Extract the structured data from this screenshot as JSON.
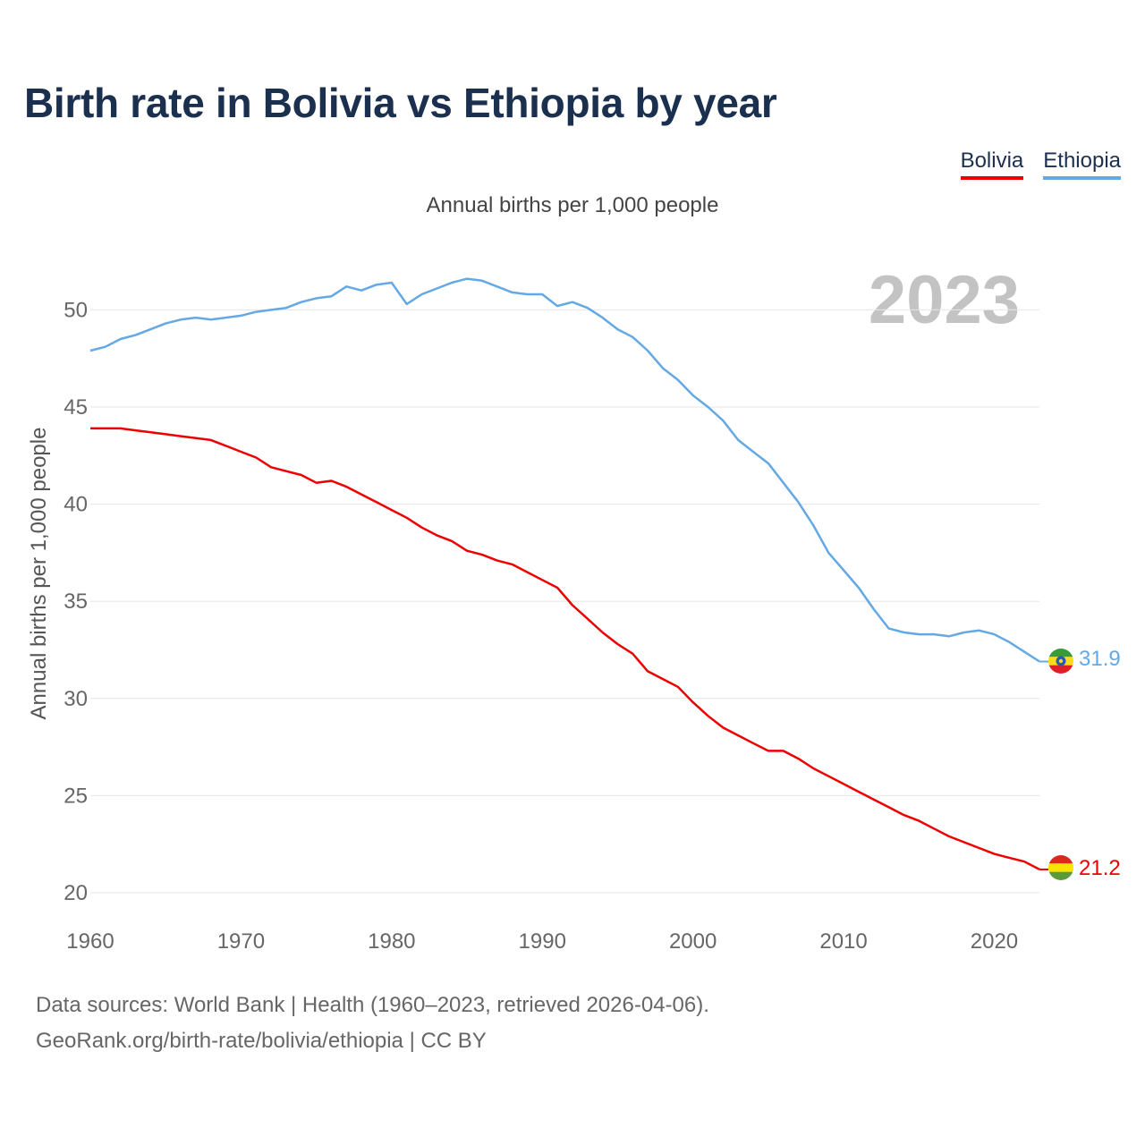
{
  "title": "Birth rate in Bolivia vs Ethiopia by year",
  "subtitle": "Annual births per 1,000 people",
  "year_label": "2023",
  "legend": [
    {
      "name": "Bolivia",
      "color": "#ee0000"
    },
    {
      "name": "Ethiopia",
      "color": "#64a8e4"
    }
  ],
  "footer": {
    "line1": "Data sources: World Bank | Health (1960–2023, retrieved 2026-04-06).",
    "line2": "GeoRank.org/birth-rate/bolivia/ethiopia | CC BY"
  },
  "chart_data": {
    "type": "line",
    "title": "Birth rate in Bolivia vs Ethiopia by year",
    "ylabel": "Annual births per 1,000 people",
    "xlabel": "",
    "xlim": [
      1960,
      2023
    ],
    "ylim": [
      20,
      53
    ],
    "x_ticks": [
      1960,
      1970,
      1980,
      1990,
      2000,
      2010,
      2020
    ],
    "y_ticks": [
      20,
      25,
      30,
      35,
      40,
      45,
      50
    ],
    "grid": true,
    "x": [
      1960,
      1961,
      1962,
      1963,
      1964,
      1965,
      1966,
      1967,
      1968,
      1969,
      1970,
      1971,
      1972,
      1973,
      1974,
      1975,
      1976,
      1977,
      1978,
      1979,
      1980,
      1981,
      1982,
      1983,
      1984,
      1985,
      1986,
      1987,
      1988,
      1989,
      1990,
      1991,
      1992,
      1993,
      1994,
      1995,
      1996,
      1997,
      1998,
      1999,
      2000,
      2001,
      2002,
      2003,
      2004,
      2005,
      2006,
      2007,
      2008,
      2009,
      2010,
      2011,
      2012,
      2013,
      2014,
      2015,
      2016,
      2017,
      2018,
      2019,
      2020,
      2021,
      2022,
      2023
    ],
    "series": [
      {
        "name": "Bolivia",
        "color": "#ee0000",
        "end_label": "21.2",
        "values": [
          43.9,
          43.9,
          43.9,
          43.8,
          43.7,
          43.6,
          43.5,
          43.4,
          43.3,
          43.0,
          42.7,
          42.4,
          41.9,
          41.7,
          41.5,
          41.1,
          41.2,
          40.9,
          40.5,
          40.1,
          39.7,
          39.3,
          38.8,
          38.4,
          38.1,
          37.6,
          37.4,
          37.1,
          36.9,
          36.5,
          36.1,
          35.7,
          34.8,
          34.1,
          33.4,
          32.8,
          32.3,
          31.4,
          31.0,
          30.6,
          29.8,
          29.1,
          28.5,
          28.1,
          27.7,
          27.3,
          27.3,
          26.9,
          26.4,
          26.0,
          25.6,
          25.2,
          24.8,
          24.4,
          24.0,
          23.7,
          23.3,
          22.9,
          22.6,
          22.3,
          22.0,
          21.8,
          21.6,
          21.2
        ]
      },
      {
        "name": "Ethiopia",
        "color": "#64a8e4",
        "end_label": "31.9",
        "values": [
          47.9,
          48.1,
          48.5,
          48.7,
          49.0,
          49.3,
          49.5,
          49.6,
          49.5,
          49.6,
          49.7,
          49.9,
          50.0,
          50.1,
          50.4,
          50.6,
          50.7,
          51.2,
          51.0,
          51.3,
          51.4,
          50.3,
          50.8,
          51.1,
          51.4,
          51.6,
          51.5,
          51.2,
          50.9,
          50.8,
          50.8,
          50.2,
          50.4,
          50.1,
          49.6,
          49.0,
          48.6,
          47.9,
          47.0,
          46.4,
          45.6,
          45.0,
          44.3,
          43.3,
          42.7,
          42.1,
          41.1,
          40.1,
          38.9,
          37.5,
          36.6,
          35.7,
          34.6,
          33.6,
          33.4,
          33.3,
          33.3,
          33.2,
          33.4,
          33.5,
          33.3,
          32.9,
          32.4,
          31.9
        ]
      }
    ]
  }
}
